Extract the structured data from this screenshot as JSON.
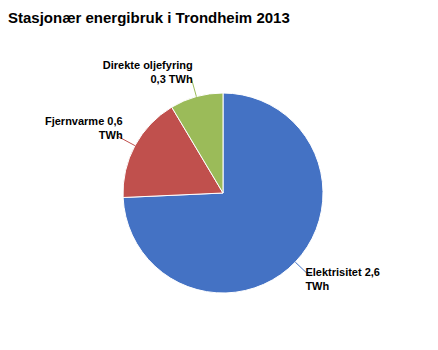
{
  "chart_data": {
    "type": "pie",
    "title": "Stasjonær energibruk i Trondheim 2013",
    "categories": [
      "Elektrisitet 2,6\nTWh",
      "Fjernvarme 0,6\nTWh",
      "Direkte oljefyring\n0,3 TWh"
    ],
    "values": [
      2.6,
      0.6,
      0.3
    ],
    "colors": [
      "#4472C4",
      "#C0504D",
      "#9BBB59"
    ]
  }
}
